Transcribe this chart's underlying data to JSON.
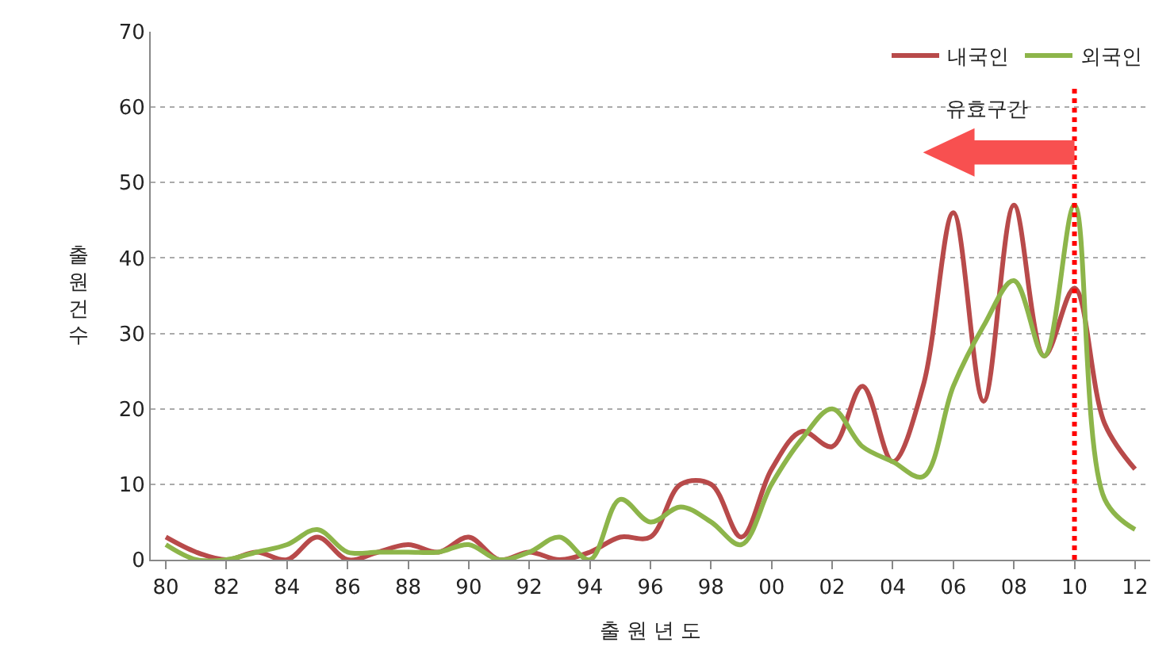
{
  "chart_data": {
    "type": "line",
    "xlabel": "출 원 년 도",
    "ylabel": "출원건수",
    "categories": [
      "80",
      null,
      "82",
      null,
      "84",
      null,
      "86",
      null,
      "88",
      null,
      "90",
      null,
      "92",
      null,
      "94",
      null,
      "96",
      null,
      "98",
      null,
      "00",
      null,
      "02",
      null,
      "04",
      null,
      "06",
      null,
      "08",
      null,
      "10",
      null,
      "12"
    ],
    "series": [
      {
        "name": "내국인",
        "color": "#b84a4a",
        "values": [
          3,
          1,
          0,
          1,
          0,
          3,
          0,
          1,
          2,
          1,
          3,
          0,
          1,
          0,
          1,
          3,
          3,
          10,
          10,
          3,
          12,
          17,
          15,
          23,
          13,
          23,
          46,
          21,
          47,
          27,
          36,
          18,
          12
        ]
      },
      {
        "name": "외국인",
        "color": "#8db54a",
        "values": [
          2,
          0,
          0,
          1,
          2,
          4,
          1,
          1,
          1,
          1,
          2,
          0,
          1,
          3,
          0,
          8,
          5,
          7,
          5,
          2,
          10,
          16,
          20,
          15,
          13,
          11,
          23,
          31,
          37,
          27,
          47,
          8,
          4
        ]
      }
    ],
    "ylim": [
      0,
      70
    ],
    "yticks": [
      0,
      10,
      20,
      30,
      40,
      50,
      60,
      70
    ],
    "grid": "y",
    "legend": "top right",
    "marker": "none",
    "line_style": "solid",
    "ref_lines": [
      {
        "axis": "x",
        "value": "10",
        "label": "유효구간",
        "color": "#ff0000",
        "line_style": "dotted"
      }
    ]
  }
}
